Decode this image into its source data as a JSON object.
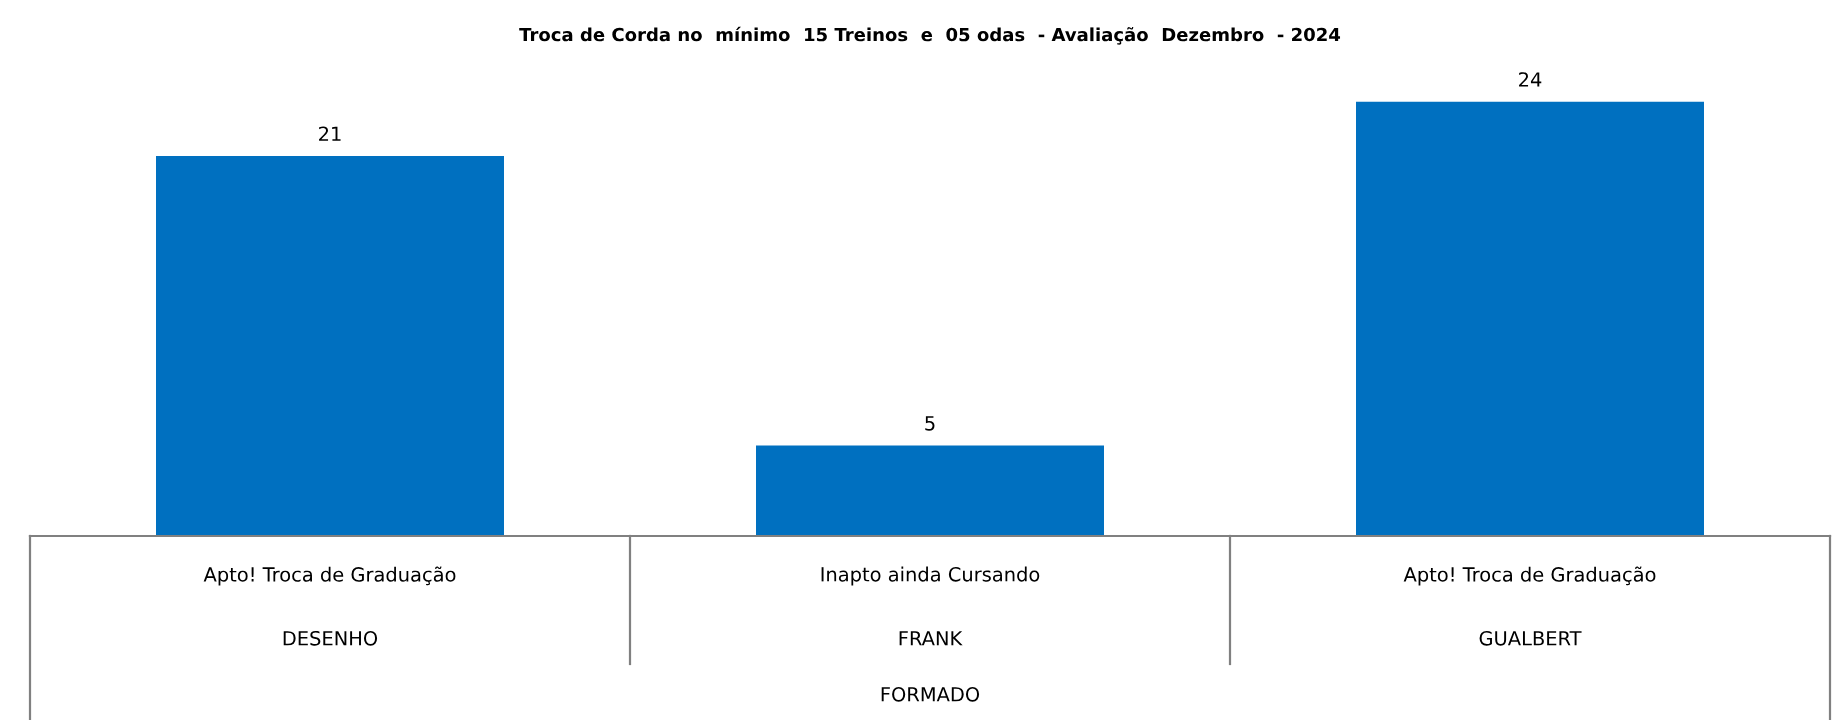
{
  "chart_data": {
    "type": "bar",
    "title": "Troca de Corda no  mínimo  15 Treinos  e  05 odas  - Avaliação  Dezembro  - 2024",
    "categories": [
      "DESENHO",
      "FRANK",
      "GUALBERT"
    ],
    "values": [
      21,
      5,
      24
    ],
    "color": "#0070c0",
    "data_labels": true,
    "annotations": [
      "Apto! Troca de Graduação",
      "Inapto ainda Cursando",
      "Apto! Troca de Graduação",
      "FORMADO"
    ]
  }
}
